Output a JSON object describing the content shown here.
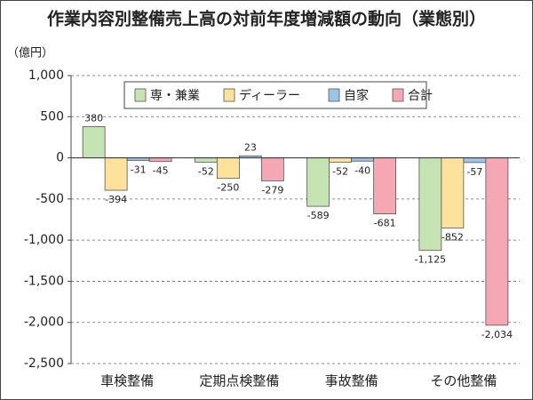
{
  "chart_data": {
    "type": "bar",
    "title": "作業内容別整備売上高の対前年度増減額の動向（業態別）",
    "y_label": "（億円）",
    "categories": [
      "車検整備",
      "定期点検整備",
      "事故整備",
      "その他整備"
    ],
    "series": [
      {
        "name": "専・兼業",
        "color": "#c6e3b3",
        "values": [
          380,
          -52,
          -589,
          -1125
        ],
        "value_labels": [
          "380",
          "-52",
          "-589",
          "-1,125"
        ]
      },
      {
        "name": "ディーラー",
        "color": "#fde29c",
        "values": [
          -394,
          -250,
          -52,
          -852
        ],
        "value_labels": [
          "-394",
          "-250",
          "-52",
          "-852"
        ]
      },
      {
        "name": "自家",
        "color": "#9dc3e6",
        "values": [
          -31,
          23,
          -40,
          -57
        ],
        "value_labels": [
          "-31",
          "23",
          "-40",
          "-57"
        ]
      },
      {
        "name": "合計",
        "color": "#f5a8b4",
        "values": [
          -45,
          -279,
          -681,
          -2034
        ],
        "value_labels": [
          "-45",
          "-279",
          "-681",
          "-2,034"
        ]
      }
    ],
    "ylim": [
      -2500,
      1000
    ],
    "yticks": [
      {
        "value": 1000,
        "label": "1,000"
      },
      500,
      0,
      -500,
      {
        "value": -1000,
        "label": "-1,000"
      },
      {
        "value": -1500,
        "label": "-1,500"
      },
      {
        "value": -2000,
        "label": "-2,000"
      },
      {
        "value": -2500,
        "label": "-2,500"
      }
    ],
    "grid": true
  }
}
